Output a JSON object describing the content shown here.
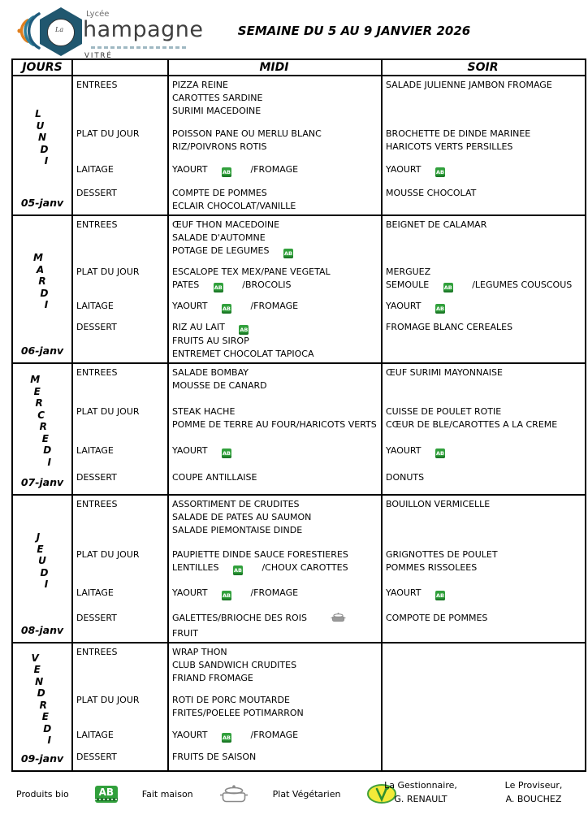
{
  "logo": {
    "small_word": "Lycée",
    "name": "hampagne",
    "initial_in_circle": "La",
    "city": "VITRÉ"
  },
  "title": "SEMAINE DU 5 AU 9 JANVIER 2026",
  "table": {
    "headers": {
      "days": "JOURS",
      "meal_type": "",
      "midi": "MIDI",
      "soir": "SOIR"
    }
  },
  "days": [
    {
      "name": "LUNDI",
      "date": "05-janv",
      "courses": [
        {
          "label": "ENTREES",
          "midi": [
            "PIZZA REINE",
            "CAROTTES SARDINE",
            "SURIMI MACEDOINE"
          ],
          "soir": [
            "SALADE JULIENNE JAMBON FROMAGE"
          ]
        },
        {
          "label": "PLAT DU JOUR",
          "midi": [
            "POISSON PANE OU MERLU BLANC",
            "RIZ/POIVRONS ROTIS"
          ],
          "soir": [
            "BROCHETTE DE DINDE MARINEE",
            "HARICOTS VERTS PERSILLES"
          ]
        },
        {
          "label": "LAITAGE",
          "midi": [
            "YAOURT {bio} /FROMAGE"
          ],
          "soir": [
            "YAOURT {bio}"
          ]
        },
        {
          "label": "DESSERT",
          "midi": [
            "COMPTE DE POMMES",
            "ECLAIR CHOCOLAT/VANILLE"
          ],
          "soir": [
            "MOUSSE CHOCOLAT"
          ]
        }
      ]
    },
    {
      "name": "MARDI",
      "date": "06-janv",
      "courses": [
        {
          "label": "ENTREES",
          "midi": [
            "ŒUF THON MACEDOINE",
            "SALADE D'AUTOMNE",
            "POTAGE DE LEGUMES {bio}"
          ],
          "soir": [
            "BEIGNET DE CALAMAR"
          ]
        },
        {
          "label": "PLAT DU JOUR",
          "midi": [
            "ESCALOPE TEX MEX/PANE VEGETAL",
            "PATES {bio} /BROCOLIS"
          ],
          "soir": [
            "MERGUEZ",
            "SEMOULE {bio} /LEGUMES COUSCOUS"
          ]
        },
        {
          "label": "LAITAGE",
          "midi": [
            "YAOURT {bio} /FROMAGE"
          ],
          "soir": [
            "YAOURT {bio}"
          ]
        },
        {
          "label": "DESSERT",
          "midi": [
            "RIZ AU LAIT {bio}",
            "FRUITS AU SIROP",
            "ENTREMET CHOCOLAT TAPIOCA"
          ],
          "soir": [
            "FROMAGE BLANC CEREALES"
          ]
        }
      ]
    },
    {
      "name": "MERCREDI",
      "date": "07-janv",
      "courses": [
        {
          "label": "ENTREES",
          "midi": [
            "SALADE BOMBAY",
            "MOUSSE DE CANARD"
          ],
          "soir": [
            "ŒUF SURIMI MAYONNAISE"
          ]
        },
        {
          "label": "PLAT DU JOUR",
          "midi": [
            "STEAK HACHE",
            "POMME DE TERRE AU FOUR/HARICOTS VERTS"
          ],
          "soir": [
            "CUISSE DE POULET ROTIE",
            "CŒUR DE BLE/CAROTTES A LA CREME"
          ]
        },
        {
          "label": "LAITAGE",
          "midi": [
            "YAOURT {bio}"
          ],
          "soir": [
            "YAOURT {bio}"
          ]
        },
        {
          "label": "DESSERT",
          "midi": [
            "COUPE ANTILLAISE"
          ],
          "soir": [
            "DONUTS"
          ]
        }
      ]
    },
    {
      "name": "JEUDI",
      "date": "08-janv",
      "courses": [
        {
          "label": "ENTREES",
          "midi": [
            "ASSORTIMENT DE CRUDITES",
            "SALADE DE PATES AU SAUMON",
            "SALADE PIEMONTAISE DINDE"
          ],
          "soir": [
            "BOUILLON VERMICELLE"
          ]
        },
        {
          "label": "PLAT DU JOUR",
          "midi": [
            "PAUPIETTE DINDE SAUCE FORESTIERES",
            "LENTILLES {bio} /CHOUX CAROTTES"
          ],
          "soir": [
            "GRIGNOTTES DE POULET",
            "POMMES RISSOLEES"
          ]
        },
        {
          "label": "LAITAGE",
          "midi": [
            "YAOURT {bio} /FROMAGE"
          ],
          "soir": [
            "YAOURT {bio}"
          ]
        },
        {
          "label": "DESSERT",
          "midi": [
            "GALETTES/BRIOCHE DES ROIS {maison}",
            "FRUIT"
          ],
          "soir": [
            "COMPOTE DE POMMES"
          ]
        }
      ]
    },
    {
      "name": "VENDREDI",
      "date": "09-janv",
      "courses": [
        {
          "label": "ENTREES",
          "midi": [
            "WRAP THON",
            "CLUB SANDWICH CRUDITES",
            "FRIAND FROMAGE"
          ],
          "soir": []
        },
        {
          "label": "PLAT DU JOUR",
          "midi": [
            "ROTI DE PORC MOUTARDE",
            "FRITES/POELEE POTIMARRON"
          ],
          "soir": []
        },
        {
          "label": "LAITAGE",
          "midi": [
            "YAOURT {bio} /FROMAGE"
          ],
          "soir": []
        },
        {
          "label": "DESSERT",
          "midi": [
            "FRUITS DE SAISON"
          ],
          "soir": []
        }
      ]
    }
  ],
  "legend": [
    {
      "label": "Produits bio",
      "icon": "ab-bio-icon",
      "icon_text": "AB"
    },
    {
      "label": "Fait maison",
      "icon": "fait-maison-icon"
    },
    {
      "label": "Plat Végétarien",
      "icon": "plat-vegetarien-icon"
    }
  ],
  "signatures": [
    {
      "role": "La Gestionnaire,",
      "name": "G. RENAULT"
    },
    {
      "role": "Le Proviseur,",
      "name": "A. BOUCHEZ"
    }
  ],
  "colors": {
    "bio_green": "#31a03c",
    "logo_hexagon": "#20576f",
    "logo_orange": "#e07f1e",
    "logo_teal": "#2f7f99",
    "veg_yellow": "#f3ea39",
    "veg_green": "#44a13a",
    "icon_grey": "#8a8a8a"
  }
}
